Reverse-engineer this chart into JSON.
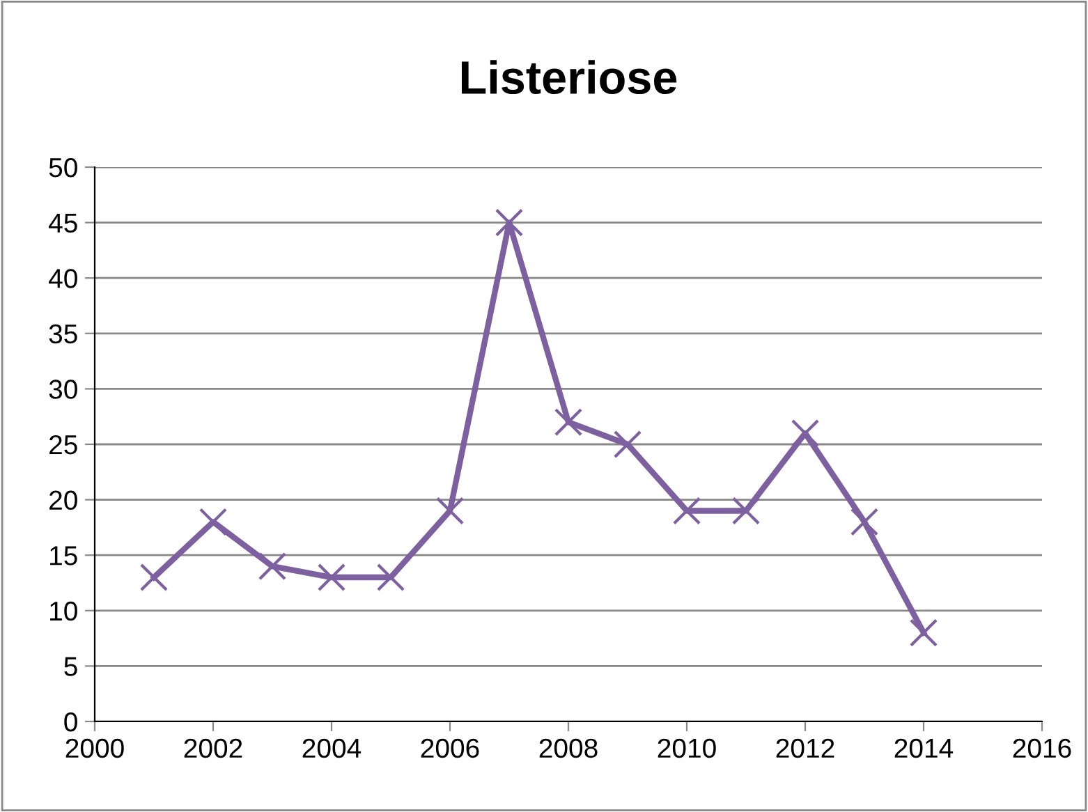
{
  "chart_data": {
    "type": "line",
    "title": "Listeriose",
    "x": [
      2001,
      2002,
      2003,
      2004,
      2005,
      2006,
      2007,
      2008,
      2009,
      2010,
      2011,
      2012,
      2013,
      2014
    ],
    "series": [
      {
        "color": "#7d60a0",
        "values": [
          13,
          18,
          14,
          13,
          13,
          19,
          45,
          27,
          25,
          19,
          19,
          26,
          18,
          8
        ]
      }
    ],
    "xlim": [
      2000,
      2016
    ],
    "xticks": [
      2000,
      2002,
      2004,
      2006,
      2008,
      2010,
      2012,
      2014,
      2016
    ],
    "ylim": [
      0,
      50
    ],
    "yticks": [
      0,
      5,
      10,
      15,
      20,
      25,
      30,
      35,
      40,
      45,
      50
    ],
    "grid": "y",
    "marker": "cross",
    "line_style": "solid",
    "legend": false
  }
}
